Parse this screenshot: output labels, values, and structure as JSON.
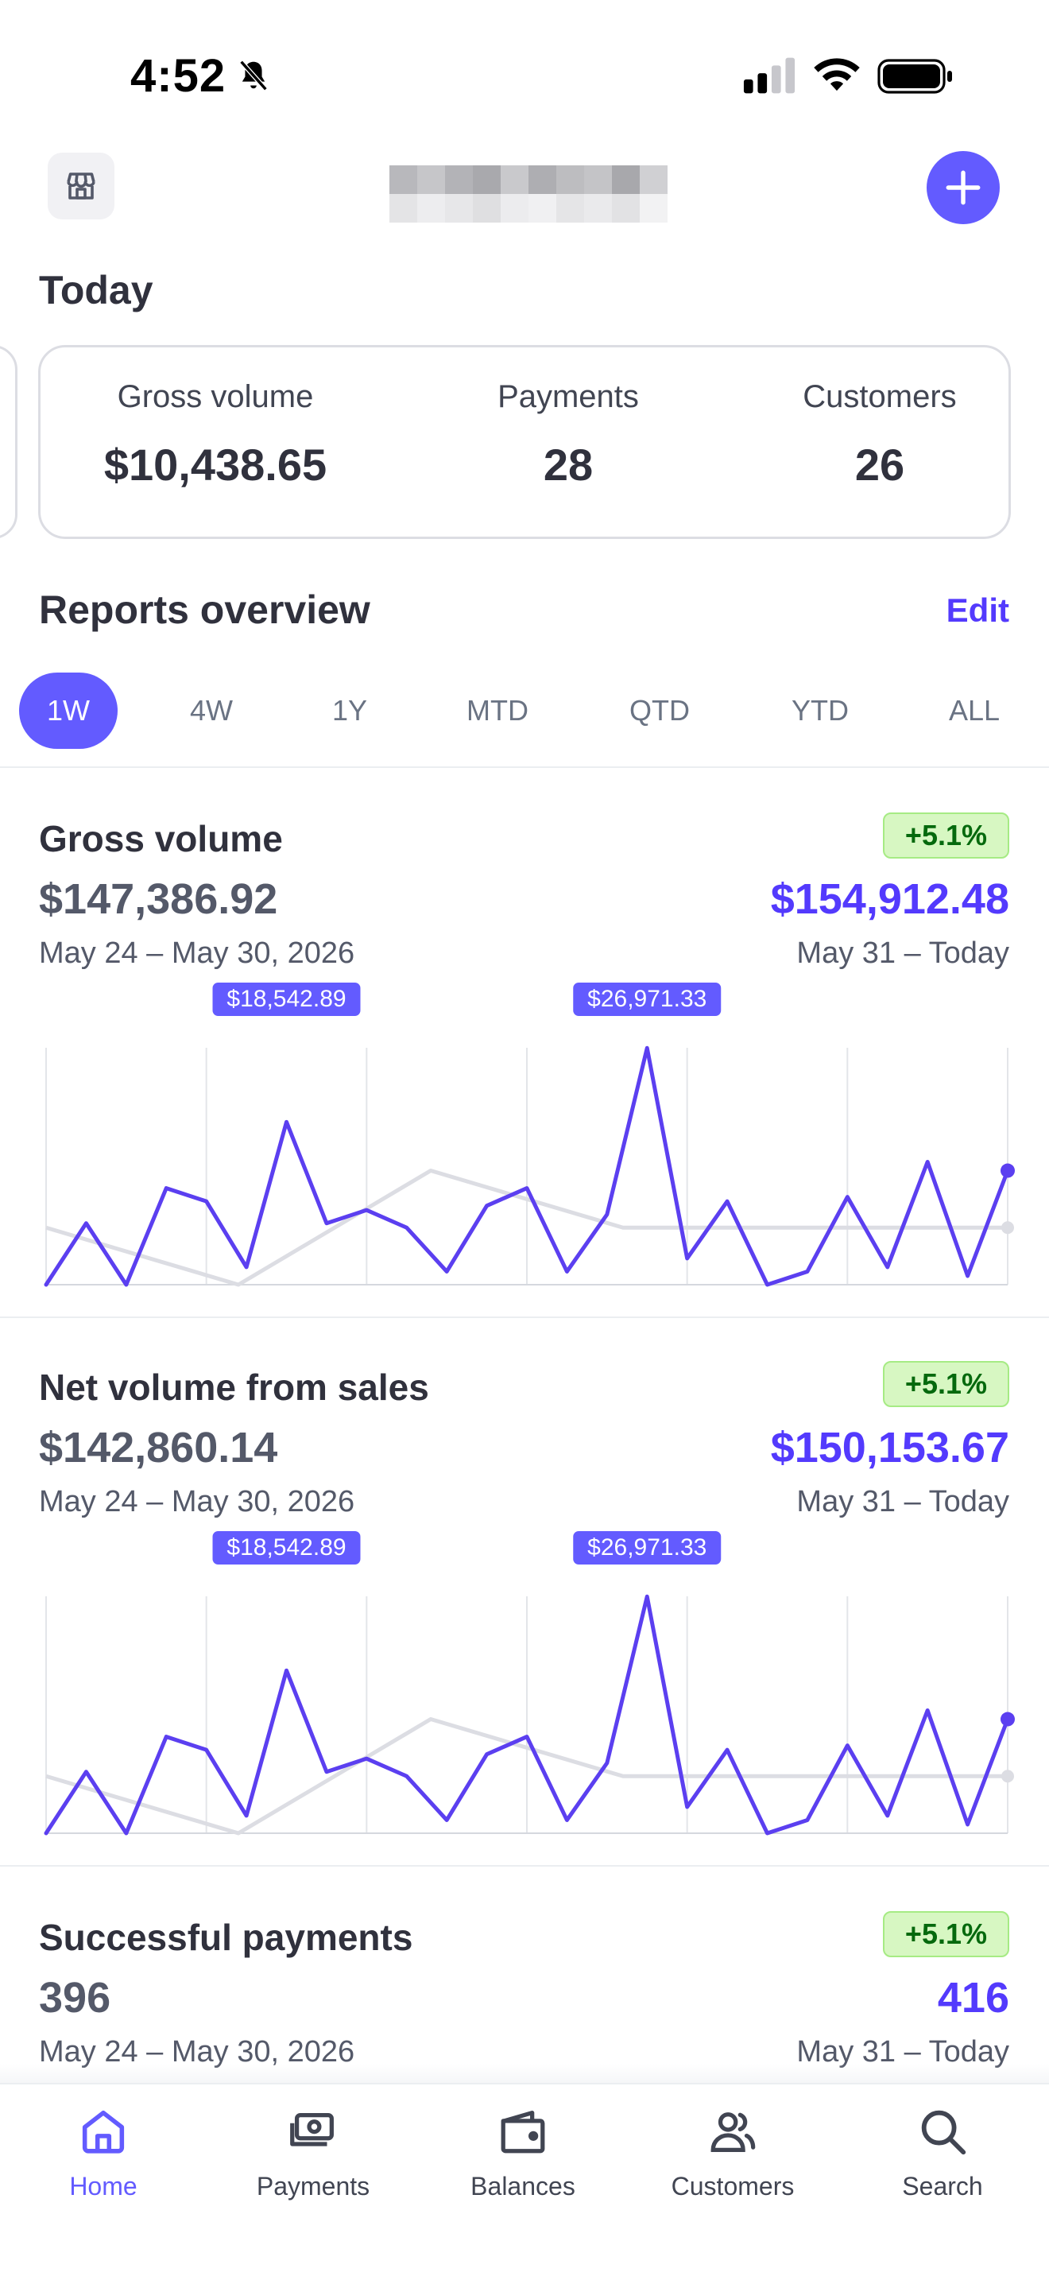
{
  "status_bar": {
    "time": "4:52"
  },
  "header": {
    "store_icon": "storefront-icon",
    "add_icon": "plus-icon"
  },
  "today": {
    "title": "Today",
    "metrics": [
      {
        "label": "Gross volume",
        "value": "$10,438.65"
      },
      {
        "label": "Payments",
        "value": "28"
      },
      {
        "label": "Customers",
        "value": "26"
      }
    ]
  },
  "reports": {
    "title": "Reports overview",
    "edit_label": "Edit",
    "ranges": [
      "1W",
      "4W",
      "1Y",
      "MTD",
      "QTD",
      "YTD",
      "ALL"
    ],
    "selected_range": "1W"
  },
  "colors": {
    "accent": "#635bff",
    "current_series": "#5b3ff0",
    "previous_series": "#dcdde3",
    "badge_bg": "#d7f7c2",
    "badge_text": "#05690d"
  },
  "report_cards": [
    {
      "title": "Gross volume",
      "change": "+5.1%",
      "previous_value": "$147,386.92",
      "current_value": "$154,912.48",
      "previous_range": "May 24 – May 30, 2026",
      "current_range": "May 31 – Today",
      "peak_labels": [
        "$18,542.89",
        "$26,971.33"
      ]
    },
    {
      "title": "Net volume from sales",
      "change": "+5.1%",
      "previous_value": "$142,860.14",
      "current_value": "$150,153.67",
      "previous_range": "May 24 – May 30, 2026",
      "current_range": "May 31 – Today",
      "peak_labels": [
        "$18,542.89",
        "$26,971.33"
      ]
    },
    {
      "title": "Successful payments",
      "change": "+5.1%",
      "previous_value": "396",
      "current_value": "416",
      "previous_range": "May 24 – May 30, 2026",
      "current_range": "May 31 – Today"
    }
  ],
  "chart_data": [
    {
      "type": "line",
      "title": "Gross volume",
      "series": [
        {
          "values": [
            0,
            7000,
            0,
            11000,
            9500,
            2000,
            18542.89,
            7000,
            8500,
            6500,
            1500,
            9000,
            11000,
            1500,
            8000,
            26971.33,
            3000,
            9500,
            0,
            1500,
            10000,
            2000,
            14000,
            1000,
            13000
          ]
        },
        {
          "values": [
            6500,
            0,
            13000,
            6500,
            6500,
            6500
          ]
        }
      ],
      "ylim": [
        0,
        27000
      ]
    },
    {
      "type": "line",
      "title": "Net volume from sales",
      "series": [
        {
          "values": [
            0,
            7000,
            0,
            11000,
            9500,
            2000,
            18542.89,
            7000,
            8500,
            6500,
            1500,
            9000,
            11000,
            1500,
            8000,
            26971.33,
            3000,
            9500,
            0,
            1500,
            10000,
            2000,
            14000,
            1000,
            13000
          ]
        },
        {
          "values": [
            6500,
            0,
            13000,
            6500,
            6500,
            6500
          ]
        }
      ],
      "ylim": [
        0,
        27000
      ]
    }
  ],
  "tab_bar": [
    {
      "label": "Home",
      "icon": "home-icon",
      "active": true
    },
    {
      "label": "Payments",
      "icon": "payments-icon",
      "active": false
    },
    {
      "label": "Balances",
      "icon": "wallet-icon",
      "active": false
    },
    {
      "label": "Customers",
      "icon": "customers-icon",
      "active": false
    },
    {
      "label": "Search",
      "icon": "search-icon",
      "active": false
    }
  ]
}
